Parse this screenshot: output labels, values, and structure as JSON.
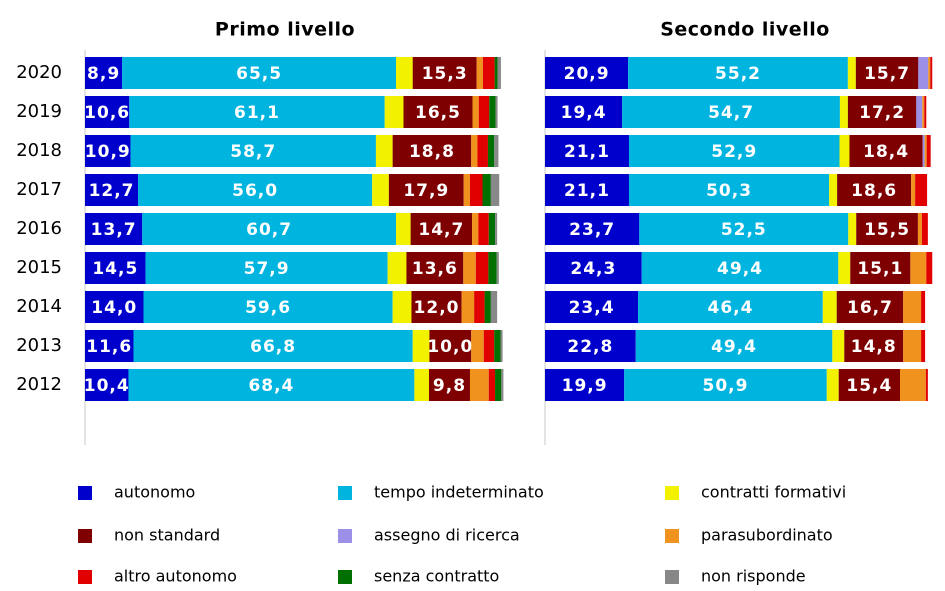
{
  "chart_data": [
    {
      "type": "stacked-bar-horizontal",
      "title": "Primo livello",
      "categories": [
        "2020",
        "2019",
        "2018",
        "2017",
        "2016",
        "2015",
        "2014",
        "2013",
        "2012"
      ],
      "xlim": [
        0,
        100
      ],
      "series": [
        {
          "name": "autonomo",
          "color": "#0000cc",
          "values": [
            8.9,
            10.6,
            10.9,
            12.7,
            13.7,
            14.5,
            14.0,
            11.6,
            10.4
          ],
          "value_labels": [
            "8,9",
            "10,6",
            "10,9",
            "12,7",
            "13,7",
            "14,5",
            "14,0",
            "11,6",
            "10,4"
          ]
        },
        {
          "name": "tempo indeterminato",
          "color": "#00b4e0",
          "values": [
            65.5,
            61.1,
            58.7,
            56.0,
            60.7,
            57.9,
            59.6,
            66.8,
            68.4
          ],
          "value_labels": [
            "65,5",
            "61,1",
            "58,7",
            "56,0",
            "60,7",
            "57,9",
            "59,6",
            "66,8",
            "68,4"
          ]
        },
        {
          "name": "contratti formativi",
          "color": "#f2f200",
          "values": [
            4.0,
            4.5,
            4.0,
            4.0,
            3.5,
            4.5,
            4.5,
            4.0,
            3.5
          ]
        },
        {
          "name": "non standard",
          "color": "#7f0000",
          "values": [
            15.3,
            16.5,
            18.8,
            17.9,
            14.7,
            13.6,
            12.0,
            10.0,
            9.8
          ],
          "value_labels": [
            "15,3",
            "16,5",
            "18,8",
            "17,9",
            "14,7",
            "13,6",
            "12,0",
            "10,0",
            "9,8"
          ]
        },
        {
          "name": "assegno di ricerca",
          "color": "#9b8fe8",
          "values": [
            0,
            0,
            0,
            0,
            0,
            0,
            0,
            0,
            0
          ]
        },
        {
          "name": "parasubordinato",
          "color": "#f0921e",
          "values": [
            1.5,
            1.5,
            1.5,
            1.5,
            1.5,
            3.0,
            3.0,
            3.0,
            4.5
          ]
        },
        {
          "name": "altro autonomo",
          "color": "#e00000",
          "values": [
            2.8,
            2.5,
            2.5,
            3.0,
            2.5,
            3.0,
            2.5,
            2.5,
            1.5
          ]
        },
        {
          "name": "senza contratto",
          "color": "#007000",
          "values": [
            0.7,
            1.5,
            1.5,
            2.0,
            1.5,
            2.0,
            1.5,
            1.5,
            1.5
          ]
        },
        {
          "name": "non risponde",
          "color": "#888888",
          "values": [
            0.8,
            0.5,
            1.0,
            2.0,
            0.5,
            0.5,
            1.5,
            0.5,
            0.5
          ]
        }
      ]
    },
    {
      "type": "stacked-bar-horizontal",
      "title": "Secondo livello",
      "categories": [
        "2020",
        "2019",
        "2018",
        "2017",
        "2016",
        "2015",
        "2014",
        "2013",
        "2012"
      ],
      "xlim": [
        0,
        100
      ],
      "series": [
        {
          "values": [
            20.9,
            19.4,
            21.1,
            21.1,
            23.7,
            24.3,
            23.4,
            22.8,
            19.9
          ],
          "value_labels": [
            "20,9",
            "19,4",
            "21,1",
            "21,1",
            "23,7",
            "24,3",
            "23,4",
            "22,8",
            "19,9"
          ]
        },
        {
          "values": [
            55.2,
            54.7,
            52.9,
            50.3,
            52.5,
            49.4,
            46.4,
            49.4,
            50.9
          ],
          "value_labels": [
            "55,2",
            "54,7",
            "52,9",
            "50,3",
            "52,5",
            "49,4",
            "46,4",
            "49,4",
            "50,9"
          ]
        },
        {
          "values": [
            2.0,
            2.0,
            2.5,
            2.0,
            2.0,
            3.0,
            3.5,
            3.0,
            3.0
          ]
        },
        {
          "values": [
            15.7,
            17.2,
            18.4,
            18.6,
            15.5,
            15.1,
            16.7,
            14.8,
            15.4
          ],
          "value_labels": [
            "15,7",
            "17,2",
            "18,4",
            "18,6",
            "15,5",
            "15,1",
            "16,7",
            "14,8",
            "15,4"
          ]
        },
        {
          "values": [
            2.5,
            1.5,
            0.5,
            0,
            0,
            0,
            0,
            0,
            0
          ]
        },
        {
          "values": [
            0.5,
            0.5,
            0.5,
            1.0,
            1.0,
            4.0,
            4.5,
            4.5,
            6.5
          ]
        },
        {
          "values": [
            0.5,
            0.5,
            1.0,
            3.0,
            1.5,
            1.5,
            1.0,
            1.0,
            0.5
          ]
        },
        {
          "values": [
            0,
            0,
            0,
            0,
            0,
            0,
            0,
            0,
            0
          ]
        },
        {
          "values": [
            0,
            0,
            0,
            0,
            0,
            0,
            0,
            0,
            0
          ]
        }
      ]
    }
  ]
}
